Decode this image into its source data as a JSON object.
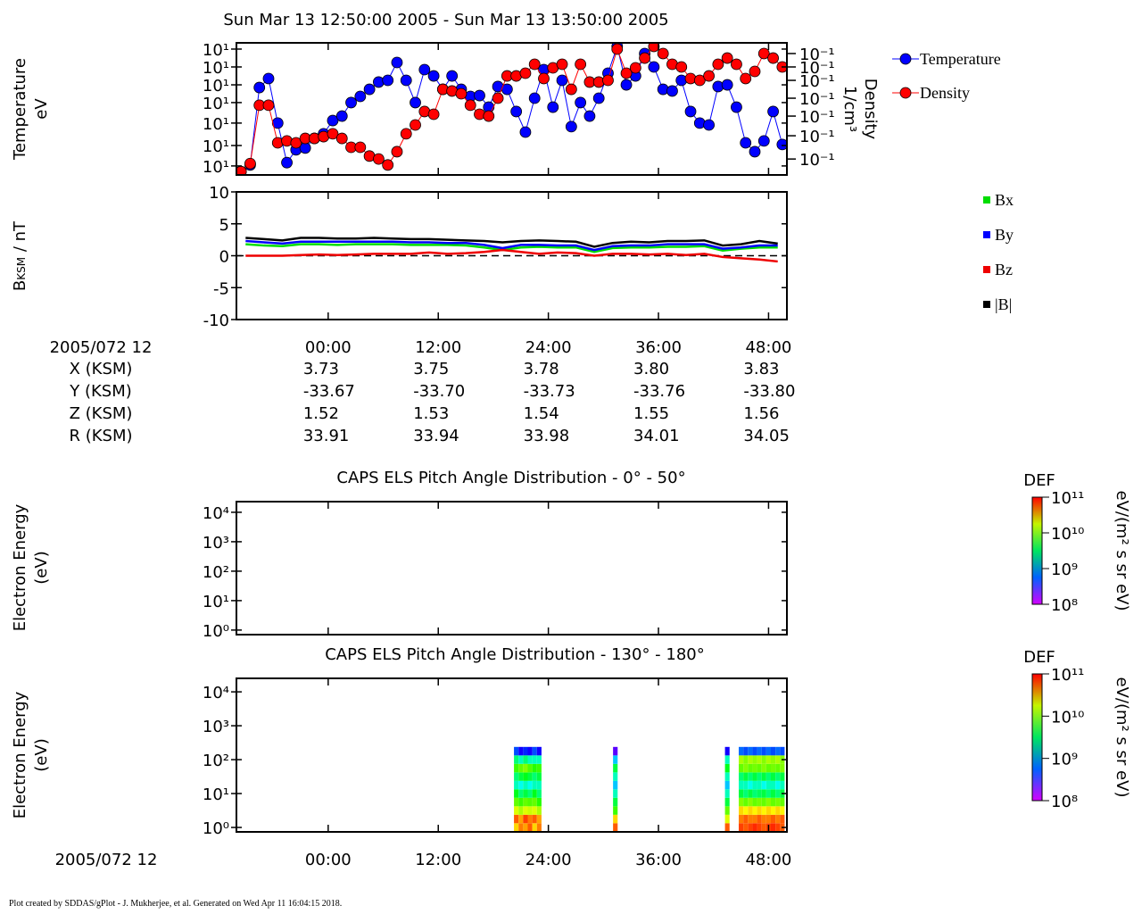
{
  "title": "Sun Mar 13 12:50:00 2005 - Sun Mar 13 13:50:00 2005",
  "footer": "Plot created by SDDAS/gPlot - J. Mukherjee, et al.  Generated on Wed Apr 11 16:04:15 2018.",
  "ephemeris": {
    "header": "2005/072 12",
    "rows": [
      {
        "label": "X (KSM)",
        "values": [
          "3.73",
          "3.75",
          "3.78",
          "3.80",
          "3.83"
        ]
      },
      {
        "label": "Y (KSM)",
        "values": [
          "-33.67",
          "-33.70",
          "-33.73",
          "-33.76",
          "-33.80"
        ]
      },
      {
        "label": "Z (KSM)",
        "values": [
          "1.52",
          "1.53",
          "1.54",
          "1.55",
          "1.56"
        ]
      },
      {
        "label": "R (KSM)",
        "values": [
          "33.91",
          "33.94",
          "33.98",
          "34.01",
          "34.05"
        ]
      }
    ]
  },
  "chart_data": [
    {
      "type": "line",
      "markers": true,
      "ylabel": [
        "Temperature",
        "eV"
      ],
      "y2label": [
        "Density",
        "1/cm³"
      ],
      "xlim": [
        -10,
        50
      ],
      "xticks": [
        0,
        12,
        24,
        36,
        48
      ],
      "ylog": true,
      "ylim": [
        10,
        100
      ],
      "yticks": [
        {
          "value": 11.7,
          "label": "10¹"
        },
        {
          "value": 16.7,
          "label": "10¹"
        },
        {
          "value": 24.7,
          "label": "10¹"
        },
        {
          "value": 35.3,
          "label": "10¹"
        },
        {
          "value": 48.1,
          "label": "10¹"
        },
        {
          "value": 65.7,
          "label": "10¹"
        },
        {
          "value": 89.7,
          "label": "10¹"
        }
      ],
      "y2log": true,
      "y2lim": [
        0.1,
        1
      ],
      "y2ticks": [
        {
          "value": 0.132,
          "label": "10⁻¹"
        },
        {
          "value": 0.198,
          "label": "10⁻¹"
        },
        {
          "value": 0.279,
          "label": "10⁻¹"
        },
        {
          "value": 0.381,
          "label": "10⁻¹"
        },
        {
          "value": 0.52,
          "label": "10⁻¹"
        },
        {
          "value": 0.657,
          "label": "10⁻¹"
        },
        {
          "value": 0.83,
          "label": "10⁻¹"
        }
      ],
      "x": [
        -9.5,
        -8.5,
        -7.5,
        -6.5,
        -5.5,
        -4.5,
        -3.5,
        -2.5,
        -1.5,
        -0.5,
        0.5,
        1.5,
        2.5,
        3.5,
        4.5,
        5.5,
        6.5,
        7.5,
        8.5,
        9.5,
        10.5,
        11.5,
        12.5,
        13.5,
        14.5,
        15.5,
        16.5,
        17.5,
        18.5,
        19.5,
        20.5,
        21.5,
        22.5,
        23.5,
        24.5,
        25.5,
        26.5,
        27.5,
        28.5,
        29.5,
        30.5,
        31.5,
        32.5,
        33.5,
        34.5,
        35.5,
        36.5,
        37.5,
        38.5,
        39.5,
        40.5,
        41.5,
        42.5,
        43.5,
        44.5,
        45.5,
        46.5,
        47.5,
        48.5,
        49.5
      ],
      "series": [
        {
          "name": "Temperature",
          "color": "#0000ff",
          "values": [
            10.6,
            11.9,
            45.9,
            53.7,
            24.7,
            12.4,
            15.5,
            16.0,
            18.9,
            20.5,
            25.8,
            27.9,
            35.3,
            39.3,
            44.5,
            50.5,
            52.0,
            71.0,
            52.0,
            35.3,
            62.7,
            56.2,
            44.5,
            56.2,
            44.5,
            39.3,
            39.9,
            32.6,
            46.7,
            44.5,
            30.2,
            21.1,
            38.1,
            62.7,
            32.6,
            52.0,
            23.2,
            35.3,
            27.9,
            38.1,
            58.9,
            94.0,
            48.1,
            56.2,
            83.0,
            65.7,
            44.5,
            43.2,
            52.0,
            30.2,
            24.7,
            23.9,
            46.7,
            48.1,
            32.6,
            17.5,
            15.0,
            18.1,
            30.2,
            17.0
          ]
        },
        {
          "name": "Density",
          "color": "#ff0000",
          "axis": "y2",
          "values": [
            0.106,
            0.122,
            0.337,
            0.337,
            0.175,
            0.181,
            0.175,
            0.189,
            0.189,
            0.195,
            0.205,
            0.189,
            0.162,
            0.162,
            0.139,
            0.132,
            0.119,
            0.15,
            0.205,
            0.239,
            0.302,
            0.288,
            0.445,
            0.432,
            0.412,
            0.337,
            0.288,
            0.279,
            0.381,
            0.562,
            0.562,
            0.589,
            0.688,
            0.537,
            0.647,
            0.688,
            0.445,
            0.688,
            0.505,
            0.505,
            0.52,
            0.897,
            0.589,
            0.647,
            0.767,
            0.94,
            0.83,
            0.688,
            0.657,
            0.537,
            0.52,
            0.562,
            0.688,
            0.767,
            0.688,
            0.537,
            0.608,
            0.83,
            0.767,
            0.657
          ]
        }
      ]
    },
    {
      "type": "line",
      "ylabel": "B",
      "ylabel_sub": "KSM",
      "ylabel_unit": " / nT",
      "xlim": [
        -10,
        50
      ],
      "xticks": [
        {
          "value": 0,
          "label": "00:00"
        },
        {
          "value": 12,
          "label": "12:00"
        },
        {
          "value": 24,
          "label": "24:00"
        },
        {
          "value": 36,
          "label": "36:00"
        },
        {
          "value": 48,
          "label": "48:00"
        }
      ],
      "ylim": [
        -10,
        10
      ],
      "yticks": [
        10,
        5,
        0,
        -5,
        -10
      ],
      "x": [
        -9,
        -7,
        -5,
        -3,
        -1,
        1,
        3,
        5,
        7,
        9,
        11,
        13,
        15,
        17,
        19,
        21,
        23,
        25,
        27,
        29,
        31,
        33,
        35,
        37,
        39,
        41,
        43,
        45,
        47,
        49
      ],
      "series": [
        {
          "name": "Bx",
          "color": "#00dd00",
          "values": [
            1.8,
            1.6,
            1.5,
            1.8,
            1.8,
            1.7,
            1.8,
            1.8,
            1.8,
            1.7,
            1.7,
            1.7,
            1.6,
            1.3,
            0.9,
            1.3,
            1.4,
            1.3,
            1.3,
            0.6,
            1.2,
            1.3,
            1.3,
            1.4,
            1.4,
            1.5,
            0.8,
            1.1,
            1.3,
            1.3
          ]
        },
        {
          "name": "By",
          "color": "#0000ff",
          "values": [
            2.3,
            2.1,
            1.9,
            2.2,
            2.2,
            2.2,
            2.2,
            2.2,
            2.2,
            2.1,
            2.1,
            2.0,
            2.0,
            1.7,
            1.2,
            1.7,
            1.7,
            1.6,
            1.6,
            0.9,
            1.5,
            1.6,
            1.6,
            1.8,
            1.8,
            1.8,
            1.1,
            1.3,
            1.6,
            1.6
          ]
        },
        {
          "name": "Bz",
          "color": "#ee0000",
          "values": [
            0,
            0,
            0,
            0.1,
            0.2,
            0.1,
            0.2,
            0.3,
            0.3,
            0.3,
            0.5,
            0.3,
            0.4,
            0.6,
            0.9,
            0.6,
            0.3,
            0.5,
            0.4,
            0,
            0.3,
            0.3,
            0.2,
            0.3,
            0.1,
            0.3,
            -0.2,
            -0.4,
            -0.6,
            -0.9
          ]
        },
        {
          "name": "|B|",
          "color": "#000000",
          "values": [
            2.8,
            2.6,
            2.4,
            2.8,
            2.8,
            2.7,
            2.7,
            2.8,
            2.7,
            2.6,
            2.6,
            2.5,
            2.4,
            2.3,
            2.1,
            2.3,
            2.4,
            2.3,
            2.2,
            1.4,
            2.0,
            2.2,
            2.1,
            2.3,
            2.3,
            2.4,
            1.6,
            1.8,
            2.3,
            1.9
          ]
        }
      ]
    },
    {
      "type": "spectrogram",
      "title": "CAPS ELS Pitch Angle Distribution - 0° - 50°",
      "ylabel": [
        "Electron Energy",
        "(eV)"
      ],
      "xlim": [
        -10,
        50
      ],
      "xticks": [
        0,
        12,
        24,
        36,
        48
      ],
      "ylog": true,
      "ylim": [
        0.7,
        23000
      ],
      "yticks": [
        {
          "value": 1,
          "label": "10⁰"
        },
        {
          "value": 10,
          "label": "10¹"
        },
        {
          "value": 100,
          "label": "10²"
        },
        {
          "value": 1000,
          "label": "10³"
        },
        {
          "value": 10000,
          "label": "10⁴"
        }
      ],
      "colorbar": {
        "title": "DEF",
        "label": "eV/(m² s sr eV)",
        "lim": [
          100000000.0,
          100000000000.0
        ],
        "ticks": [
          {
            "value": 100000000.0,
            "label": "10⁸"
          },
          {
            "value": 1000000000.0,
            "label": "10⁹"
          },
          {
            "value": 10000000000.0,
            "label": "10¹⁰"
          },
          {
            "value": 100000000000.0,
            "label": "10¹¹"
          }
        ]
      }
    },
    {
      "type": "spectrogram",
      "title": "CAPS ELS Pitch Angle Distribution - 130° - 180°",
      "ylabel": [
        "Electron Energy",
        "(eV)"
      ],
      "xlabel": "2005/072 12",
      "xlim": [
        -10,
        50
      ],
      "xticks": [
        {
          "value": 0,
          "label": "00:00"
        },
        {
          "value": 12,
          "label": "12:00"
        },
        {
          "value": 24,
          "label": "24:00"
        },
        {
          "value": 36,
          "label": "36:00"
        },
        {
          "value": 48,
          "label": "48:00"
        }
      ],
      "ylog": true,
      "ylim": [
        0.74,
        25000
      ],
      "yticks": [
        {
          "value": 1,
          "label": "10⁰"
        },
        {
          "value": 10,
          "label": "10¹"
        },
        {
          "value": 100,
          "label": "10²"
        },
        {
          "value": 1000,
          "label": "10³"
        },
        {
          "value": 10000,
          "label": "10⁴"
        }
      ],
      "colorbar": {
        "title": "DEF",
        "label": "eV/(m² s sr eV)",
        "lim": [
          100000000.0,
          100000000000.0
        ],
        "ticks": [
          {
            "value": 100000000.0,
            "label": "10⁸"
          },
          {
            "value": 1000000000.0,
            "label": "10⁹"
          },
          {
            "value": 10000000000.0,
            "label": "10¹⁰"
          },
          {
            "value": 100000000000.0,
            "label": "10¹¹"
          }
        ]
      },
      "energies": [
        1,
        1.78,
        3.16,
        5.62,
        10,
        17.8,
        31.6,
        56.2,
        100,
        178
      ],
      "x": [
        20.5,
        21,
        21.5,
        22,
        22.5,
        23,
        31.3,
        43.5,
        45,
        45.5,
        46,
        46.5,
        47,
        47.5,
        48,
        48.5,
        49,
        49.5
      ],
      "z": [
        [
          30000000000.0,
          60000000000.0,
          20000000000.0,
          10000000000.0,
          5000000000.0,
          2000000000.0,
          3000000000.0,
          8000000000.0,
          3000000000.0,
          500000000.0
        ],
        [
          50000000000.0,
          40000000000.0,
          15000000000.0,
          8000000000.0,
          3000000000.0,
          1500000000.0,
          4000000000.0,
          10000000000.0,
          2000000000.0,
          300000000.0
        ],
        [
          40000000000.0,
          70000000000.0,
          20000000000.0,
          10000000000.0,
          4000000000.0,
          2000000000.0,
          5000000000.0,
          12000000000.0,
          3000000000.0,
          400000000.0
        ],
        [
          60000000000.0,
          50000000000.0,
          18000000000.0,
          9000000000.0,
          3000000000.0,
          1500000000.0,
          4000000000.0,
          9000000000.0,
          2000000000.0,
          300000000.0
        ],
        [
          30000000000.0,
          60000000000.0,
          20000000000.0,
          10000000000.0,
          5000000000.0,
          2000000000.0,
          3000000000.0,
          7000000000.0,
          2000000000.0,
          500000000.0
        ],
        [
          50000000000.0,
          40000000000.0,
          15000000000.0,
          7000000000.0,
          3000000000.0,
          2000000000.0,
          4000000000.0,
          8000000000.0,
          2000000000.0,
          300000000.0
        ],
        [
          60000000000.0,
          30000000000.0,
          8000000000.0,
          4000000000.0,
          2000000000.0,
          1000000000.0,
          2000000000.0,
          4000000000.0,
          1000000000.0,
          200000000.0
        ],
        [
          60000000000.0,
          20000000000.0,
          10000000000.0,
          4000000000.0,
          2000000000.0,
          1000000000.0,
          2000000000.0,
          5000000000.0,
          2000000000.0,
          300000000.0
        ],
        [
          70000000000.0,
          50000000000.0,
          30000000000.0,
          12000000000.0,
          4000000000.0,
          2000000000.0,
          3000000000.0,
          10000000000.0,
          15000000000.0,
          600000000.0
        ],
        [
          60000000000.0,
          60000000000.0,
          25000000000.0,
          10000000000.0,
          3000000000.0,
          2000000000.0,
          4000000000.0,
          12000000000.0,
          12000000000.0,
          500000000.0
        ],
        [
          70000000000.0,
          50000000000.0,
          30000000000.0,
          12000000000.0,
          4000000000.0,
          1500000000.0,
          3000000000.0,
          10000000000.0,
          15000000000.0,
          600000000.0
        ],
        [
          80000000000.0,
          50000000000.0,
          25000000000.0,
          10000000000.0,
          3000000000.0,
          2000000000.0,
          4000000000.0,
          11000000000.0,
          13000000000.0,
          500000000.0
        ],
        [
          70000000000.0,
          60000000000.0,
          30000000000.0,
          11000000000.0,
          3500000000.0,
          2000000000.0,
          3000000000.0,
          10000000000.0,
          15000000000.0,
          600000000.0
        ],
        [
          60000000000.0,
          50000000000.0,
          25000000000.0,
          10000000000.0,
          4000000000.0,
          1500000000.0,
          4000000000.0,
          12000000000.0,
          12000000000.0,
          500000000.0
        ],
        [
          70000000000.0,
          50000000000.0,
          30000000000.0,
          12000000000.0,
          3000000000.0,
          2000000000.0,
          3000000000.0,
          10000000000.0,
          15000000000.0,
          600000000.0
        ],
        [
          80000000000.0,
          60000000000.0,
          25000000000.0,
          10000000000.0,
          4000000000.0,
          2000000000.0,
          4000000000.0,
          11000000000.0,
          13000000000.0,
          500000000.0
        ],
        [
          70000000000.0,
          50000000000.0,
          30000000000.0,
          11000000000.0,
          3000000000.0,
          1500000000.0,
          3000000000.0,
          10000000000.0,
          15000000000.0,
          600000000.0
        ],
        [
          60000000000.0,
          60000000000.0,
          25000000000.0,
          10000000000.0,
          4000000000.0,
          2000000000.0,
          4000000000.0,
          12000000000.0,
          12000000000.0,
          500000000.0
        ]
      ]
    }
  ]
}
